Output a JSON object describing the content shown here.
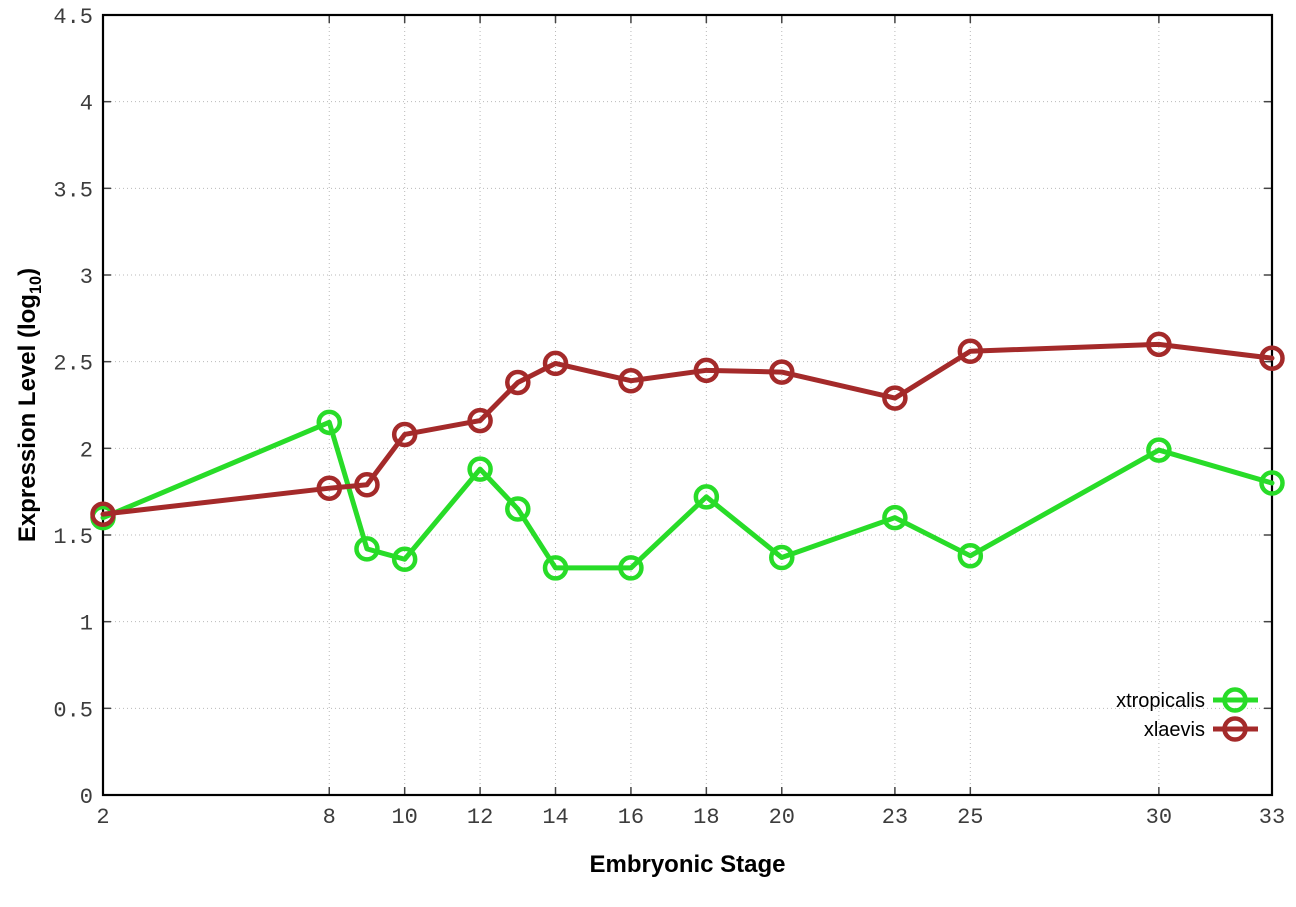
{
  "figure": {
    "background_color": "#ffffff",
    "border_color": "#000000",
    "grid_color": "#b9b9b9",
    "tick_label_color": "#3c3c3c"
  },
  "chart_data": {
    "type": "line",
    "title": "",
    "xlabel": "Embryonic Stage",
    "ylabel_prefix": "Expression Level (log",
    "ylabel_sub": "10",
    "ylabel_suffix": ")",
    "xlim": [
      2,
      33
    ],
    "ylim": [
      0,
      4.5
    ],
    "grid": true,
    "legend_position": "bottom-right",
    "x": [
      2,
      8,
      9,
      10,
      12,
      13,
      14,
      16,
      18,
      20,
      23,
      25,
      30,
      33
    ],
    "xticks": [
      "2",
      "8",
      "10",
      "12",
      "14",
      "16",
      "18",
      "20",
      "23",
      "25",
      "30",
      "33"
    ],
    "yticks": [
      "0",
      "0.5",
      "1",
      "1.5",
      "2",
      "2.5",
      "3",
      "3.5",
      "4",
      "4.5"
    ],
    "series": [
      {
        "name": "xtropicalis",
        "color": "#28dc28",
        "marker": "open-circle",
        "values": [
          1.6,
          2.15,
          1.42,
          1.36,
          1.88,
          1.65,
          1.31,
          1.31,
          1.72,
          1.37,
          1.6,
          1.38,
          1.99,
          1.8
        ]
      },
      {
        "name": "xlaevis",
        "color": "#a42a2a",
        "marker": "open-circle",
        "values": [
          1.62,
          1.77,
          1.79,
          2.08,
          2.16,
          2.38,
          2.49,
          2.39,
          2.45,
          2.44,
          2.29,
          2.56,
          2.6,
          2.52
        ]
      }
    ]
  }
}
